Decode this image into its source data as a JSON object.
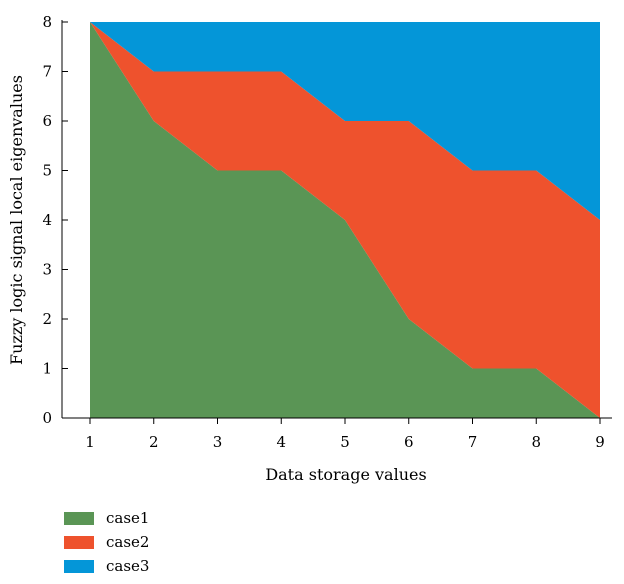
{
  "chart_data": {
    "type": "area",
    "stacked": true,
    "x": [
      1,
      2,
      3,
      4,
      5,
      6,
      7,
      8,
      9
    ],
    "series": [
      {
        "name": "case1",
        "color": "#5a9555",
        "values": [
          8,
          6,
          5,
          5,
          4,
          2,
          1,
          1,
          0
        ]
      },
      {
        "name": "case2",
        "color": "#ee522d",
        "values": [
          0,
          1,
          2,
          2,
          2,
          4,
          4,
          4,
          4
        ]
      },
      {
        "name": "case3",
        "color": "#0496d8",
        "values": [
          0,
          1,
          1,
          1,
          2,
          2,
          3,
          3,
          4
        ]
      }
    ],
    "xlabel": "Data storage values",
    "ylabel": "Fuzzy logic signal local eigenvalues",
    "xlim": [
      1,
      9
    ],
    "ylim": [
      0,
      8
    ],
    "xticks": [
      "1",
      "2",
      "3",
      "4",
      "5",
      "6",
      "7",
      "8",
      "9"
    ],
    "yticks": [
      "0",
      "1",
      "2",
      "3",
      "4",
      "5",
      "6",
      "7",
      "8"
    ],
    "grid": false,
    "legend_position": "bottom-left"
  }
}
